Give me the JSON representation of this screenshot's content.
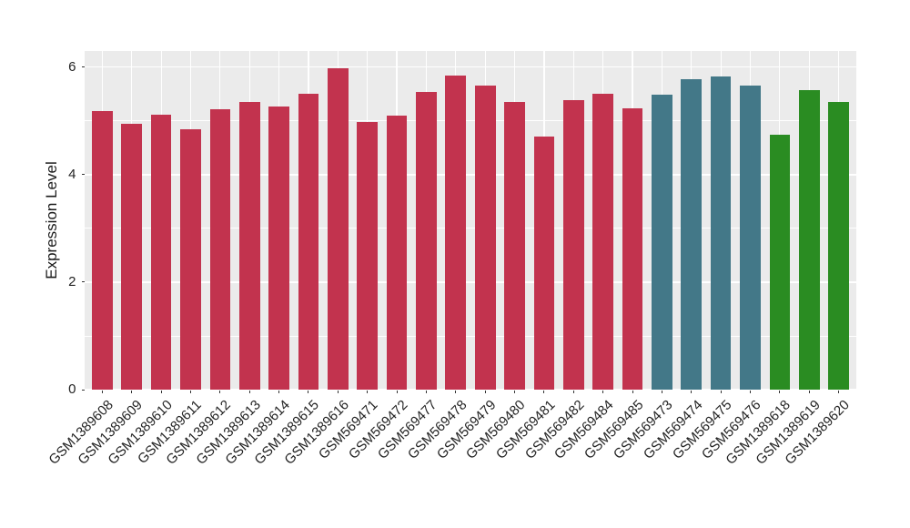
{
  "figure": {
    "background": "#FFFFFF",
    "panel_background": "#EBEBEB",
    "gridline_color": "#FFFFFF",
    "tick_color": "#333333",
    "text_color": "#232323"
  },
  "chart_data": {
    "type": "bar",
    "title": "",
    "xlabel": "",
    "ylabel": "Expression Level",
    "ylim": [
      0,
      6.3
    ],
    "yticks_major": [
      0,
      2,
      4,
      6
    ],
    "yticks_minor": [
      1,
      3,
      5
    ],
    "grid": "white major+minor horizontal lines and vertical category lines on gray panel",
    "legend": "none",
    "categories": [
      "GSM1389608",
      "GSM1389609",
      "GSM1389610",
      "GSM1389611",
      "GSM1389612",
      "GSM1389613",
      "GSM1389614",
      "GSM1389615",
      "GSM1389616",
      "GSM569471",
      "GSM569472",
      "GSM569477",
      "GSM569478",
      "GSM569479",
      "GSM569480",
      "GSM569481",
      "GSM569482",
      "GSM569484",
      "GSM569485",
      "GSM569473",
      "GSM569474",
      "GSM569475",
      "GSM569476",
      "GSM1389618",
      "GSM1389619",
      "GSM1389620"
    ],
    "values": [
      5.18,
      4.94,
      5.11,
      4.84,
      5.21,
      5.36,
      5.27,
      5.5,
      5.98,
      4.98,
      5.1,
      5.53,
      5.84,
      5.65,
      5.35,
      4.7,
      5.39,
      5.5,
      5.23,
      5.48,
      5.77,
      5.83,
      5.66,
      4.75,
      5.58,
      5.35
    ],
    "groups": [
      "crimson",
      "crimson",
      "crimson",
      "crimson",
      "crimson",
      "crimson",
      "crimson",
      "crimson",
      "crimson",
      "crimson",
      "crimson",
      "crimson",
      "crimson",
      "crimson",
      "crimson",
      "crimson",
      "crimson",
      "crimson",
      "crimson",
      "teal",
      "teal",
      "teal",
      "teal",
      "green",
      "green",
      "green"
    ],
    "group_colors": {
      "crimson": "#C2334E",
      "teal": "#437888",
      "green": "#2A8C22"
    }
  }
}
